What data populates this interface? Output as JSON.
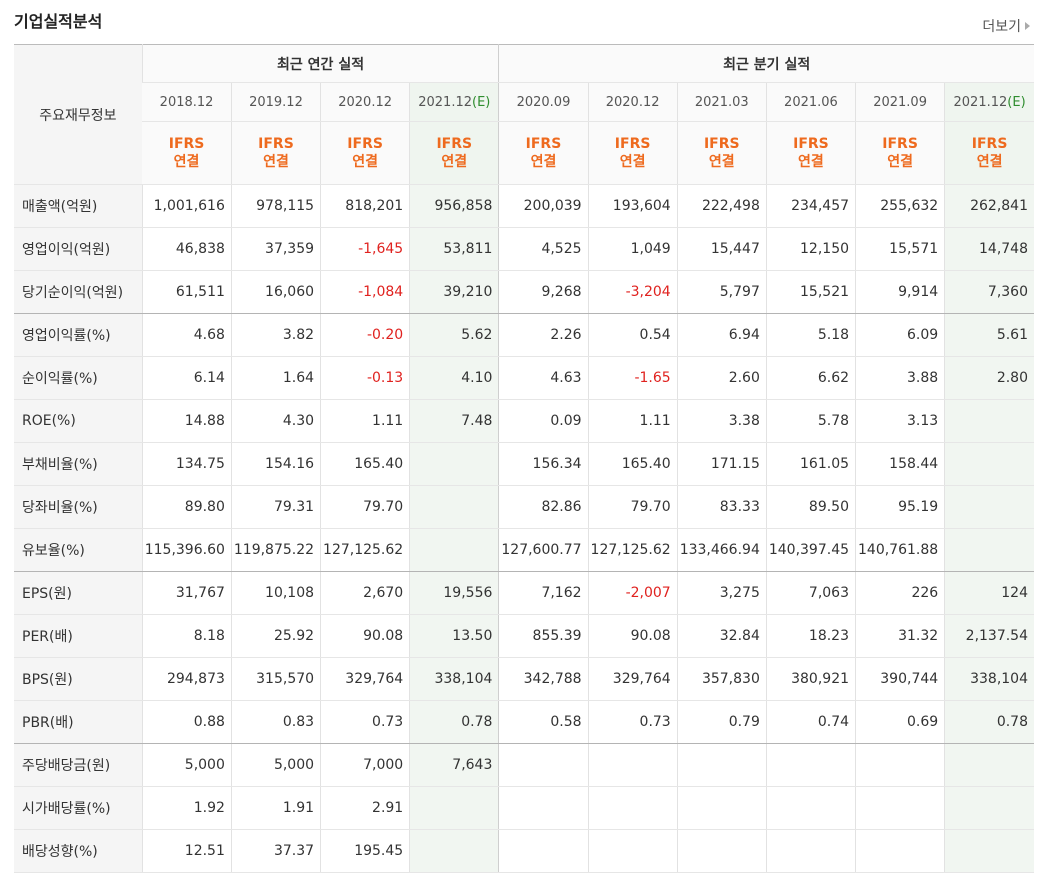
{
  "header": {
    "title": "기업실적분석",
    "more_label": "더보기"
  },
  "table": {
    "corner_label": "주요재무정보",
    "group_annual": "최근 연간 실적",
    "group_quarter": "최근 분기 실적",
    "periods": [
      {
        "label": "2018.12",
        "est": false
      },
      {
        "label": "2019.12",
        "est": false
      },
      {
        "label": "2020.12",
        "est": false
      },
      {
        "label": "2021.12",
        "est": true
      },
      {
        "label": "2020.09",
        "est": false
      },
      {
        "label": "2020.12",
        "est": false
      },
      {
        "label": "2021.03",
        "est": false
      },
      {
        "label": "2021.06",
        "est": false
      },
      {
        "label": "2021.09",
        "est": false
      },
      {
        "label": "2021.12",
        "est": true
      }
    ],
    "est_mark": "(E)",
    "ifrs_line1": "IFRS",
    "ifrs_line2": "연결",
    "rows": [
      {
        "label": "매출액(억원)",
        "values": [
          "1,001,616",
          "978,115",
          "818,201",
          "956,858",
          "200,039",
          "193,604",
          "222,498",
          "234,457",
          "255,632",
          "262,841"
        ]
      },
      {
        "label": "영업이익(억원)",
        "values": [
          "46,838",
          "37,359",
          "-1,645",
          "53,811",
          "4,525",
          "1,049",
          "15,447",
          "12,150",
          "15,571",
          "14,748"
        ]
      },
      {
        "label": "당기순이익(억원)",
        "values": [
          "61,511",
          "16,060",
          "-1,084",
          "39,210",
          "9,268",
          "-3,204",
          "5,797",
          "15,521",
          "9,914",
          "7,360"
        ],
        "group_end": true
      },
      {
        "label": "영업이익률(%)",
        "values": [
          "4.68",
          "3.82",
          "-0.20",
          "5.62",
          "2.26",
          "0.54",
          "6.94",
          "5.18",
          "6.09",
          "5.61"
        ]
      },
      {
        "label": "순이익률(%)",
        "values": [
          "6.14",
          "1.64",
          "-0.13",
          "4.10",
          "4.63",
          "-1.65",
          "2.60",
          "6.62",
          "3.88",
          "2.80"
        ]
      },
      {
        "label": "ROE(%)",
        "values": [
          "14.88",
          "4.30",
          "1.11",
          "7.48",
          "0.09",
          "1.11",
          "3.38",
          "5.78",
          "3.13",
          ""
        ]
      },
      {
        "label": "부채비율(%)",
        "values": [
          "134.75",
          "154.16",
          "165.40",
          "",
          "156.34",
          "165.40",
          "171.15",
          "161.05",
          "158.44",
          ""
        ]
      },
      {
        "label": "당좌비율(%)",
        "values": [
          "89.80",
          "79.31",
          "79.70",
          "",
          "82.86",
          "79.70",
          "83.33",
          "89.50",
          "95.19",
          ""
        ]
      },
      {
        "label": "유보율(%)",
        "values": [
          "115,396.60",
          "119,875.22",
          "127,125.62",
          "",
          "127,600.77",
          "127,125.62",
          "133,466.94",
          "140,397.45",
          "140,761.88",
          ""
        ],
        "group_end": true
      },
      {
        "label": "EPS(원)",
        "values": [
          "31,767",
          "10,108",
          "2,670",
          "19,556",
          "7,162",
          "-2,007",
          "3,275",
          "7,063",
          "226",
          "124"
        ]
      },
      {
        "label": "PER(배)",
        "values": [
          "8.18",
          "25.92",
          "90.08",
          "13.50",
          "855.39",
          "90.08",
          "32.84",
          "18.23",
          "31.32",
          "2,137.54"
        ]
      },
      {
        "label": "BPS(원)",
        "values": [
          "294,873",
          "315,570",
          "329,764",
          "338,104",
          "342,788",
          "329,764",
          "357,830",
          "380,921",
          "390,744",
          "338,104"
        ]
      },
      {
        "label": "PBR(배)",
        "values": [
          "0.88",
          "0.83",
          "0.73",
          "0.78",
          "0.58",
          "0.73",
          "0.79",
          "0.74",
          "0.69",
          "0.78"
        ],
        "group_end": true
      },
      {
        "label": "주당배당금(원)",
        "values": [
          "5,000",
          "5,000",
          "7,000",
          "7,643",
          "",
          "",
          "",
          "",
          "",
          ""
        ]
      },
      {
        "label": "시가배당률(%)",
        "values": [
          "1.92",
          "1.91",
          "2.91",
          "",
          "",
          "",
          "",
          "",
          "",
          ""
        ]
      },
      {
        "label": "배당성향(%)",
        "values": [
          "12.51",
          "37.37",
          "195.45",
          "",
          "",
          "",
          "",
          "",
          "",
          ""
        ]
      }
    ]
  }
}
